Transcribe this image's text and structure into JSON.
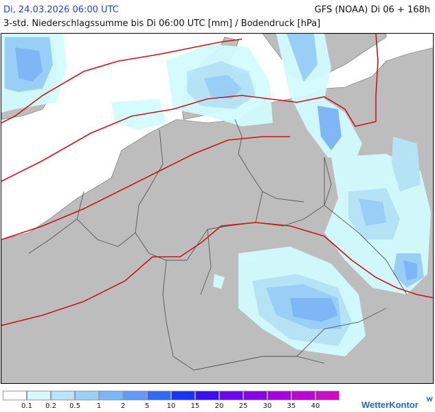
{
  "header": {
    "datetime": "Di, 24.03.2026 06:00 UTC",
    "model": "GFS (NOAA) Di 06 + 168h",
    "description": "3-std. Niederschlagssumme bis Di 06:00 UTC [mm] / Bodendruck [hPa]"
  },
  "legend": {
    "items": [
      {
        "label": "",
        "color": "#ffffff"
      },
      {
        "label": "0.1",
        "color": "#d2fbfd"
      },
      {
        "label": "0.2",
        "color": "#b6e5fa"
      },
      {
        "label": "0.5",
        "color": "#98d0fb"
      },
      {
        "label": "1",
        "color": "#7cb6fa"
      },
      {
        "label": "2",
        "color": "#6599fb"
      },
      {
        "label": "5",
        "color": "#2f6cf9"
      },
      {
        "label": "10",
        "color": "#1734f7"
      },
      {
        "label": "15",
        "color": "#3b0ef3"
      },
      {
        "label": "20",
        "color": "#6d05ef"
      },
      {
        "label": "25",
        "color": "#8a04ea"
      },
      {
        "label": "30",
        "color": "#a504e1"
      },
      {
        "label": "35",
        "color": "#c004d6"
      },
      {
        "label": "40",
        "color": "#cd0cc4"
      }
    ]
  },
  "brand": {
    "name": "WetterKontor",
    "icon": "wetterkontor-logo-icon"
  },
  "map": {
    "land_color": "#bdbdbd",
    "sea_color": "#ffffff",
    "isobar_color": "#cc1111",
    "border_color": "#555555"
  }
}
